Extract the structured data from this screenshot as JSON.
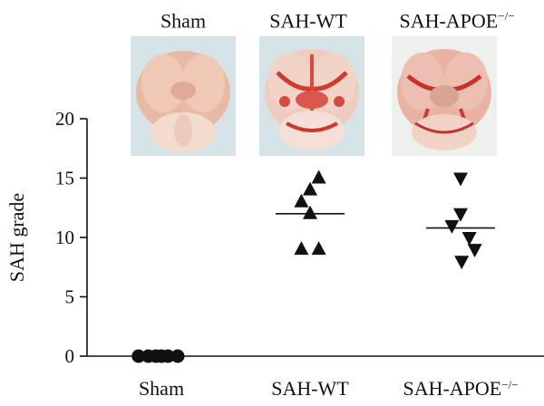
{
  "brain_labels": [
    {
      "base": "Sham",
      "sup": ""
    },
    {
      "base": "SAH-WT",
      "sup": ""
    },
    {
      "base": "SAH-APOE",
      "sup": "−/−"
    }
  ],
  "colors": {
    "marker": "#111111",
    "axis": "#111111",
    "background": "#ffffff"
  },
  "chart_data": {
    "type": "scatter",
    "title": "",
    "ylabel": "SAH grade",
    "xlabel": "",
    "ylim": [
      0,
      20
    ],
    "yticks": [
      0,
      5,
      10,
      15,
      20
    ],
    "grid": false,
    "categories": [
      {
        "base": "Sham",
        "sup": ""
      },
      {
        "base": "SAH-WT",
        "sup": ""
      },
      {
        "base": "SAH-APOE",
        "sup": "−/−"
      }
    ],
    "series": [
      {
        "category": "Sham",
        "marker": "circle",
        "values": [
          0,
          0,
          0,
          0,
          0,
          0
        ],
        "offsets": [
          -2.1,
          -1.2,
          -0.5,
          0,
          0.6,
          1.5
        ],
        "mean": 0
      },
      {
        "category": "SAH-WT",
        "marker": "triangle-up",
        "values": [
          15,
          14,
          13,
          12,
          9,
          9
        ],
        "offsets": [
          0.8,
          0,
          -0.8,
          0,
          -0.8,
          0.8
        ],
        "mean": 12
      },
      {
        "category": "SAH-APOE-/-",
        "marker": "triangle-down",
        "values": [
          15,
          12,
          11,
          10,
          9,
          8
        ],
        "offsets": [
          0,
          0,
          -0.8,
          0.8,
          1.3,
          0.1
        ],
        "mean": 10.8
      }
    ]
  }
}
